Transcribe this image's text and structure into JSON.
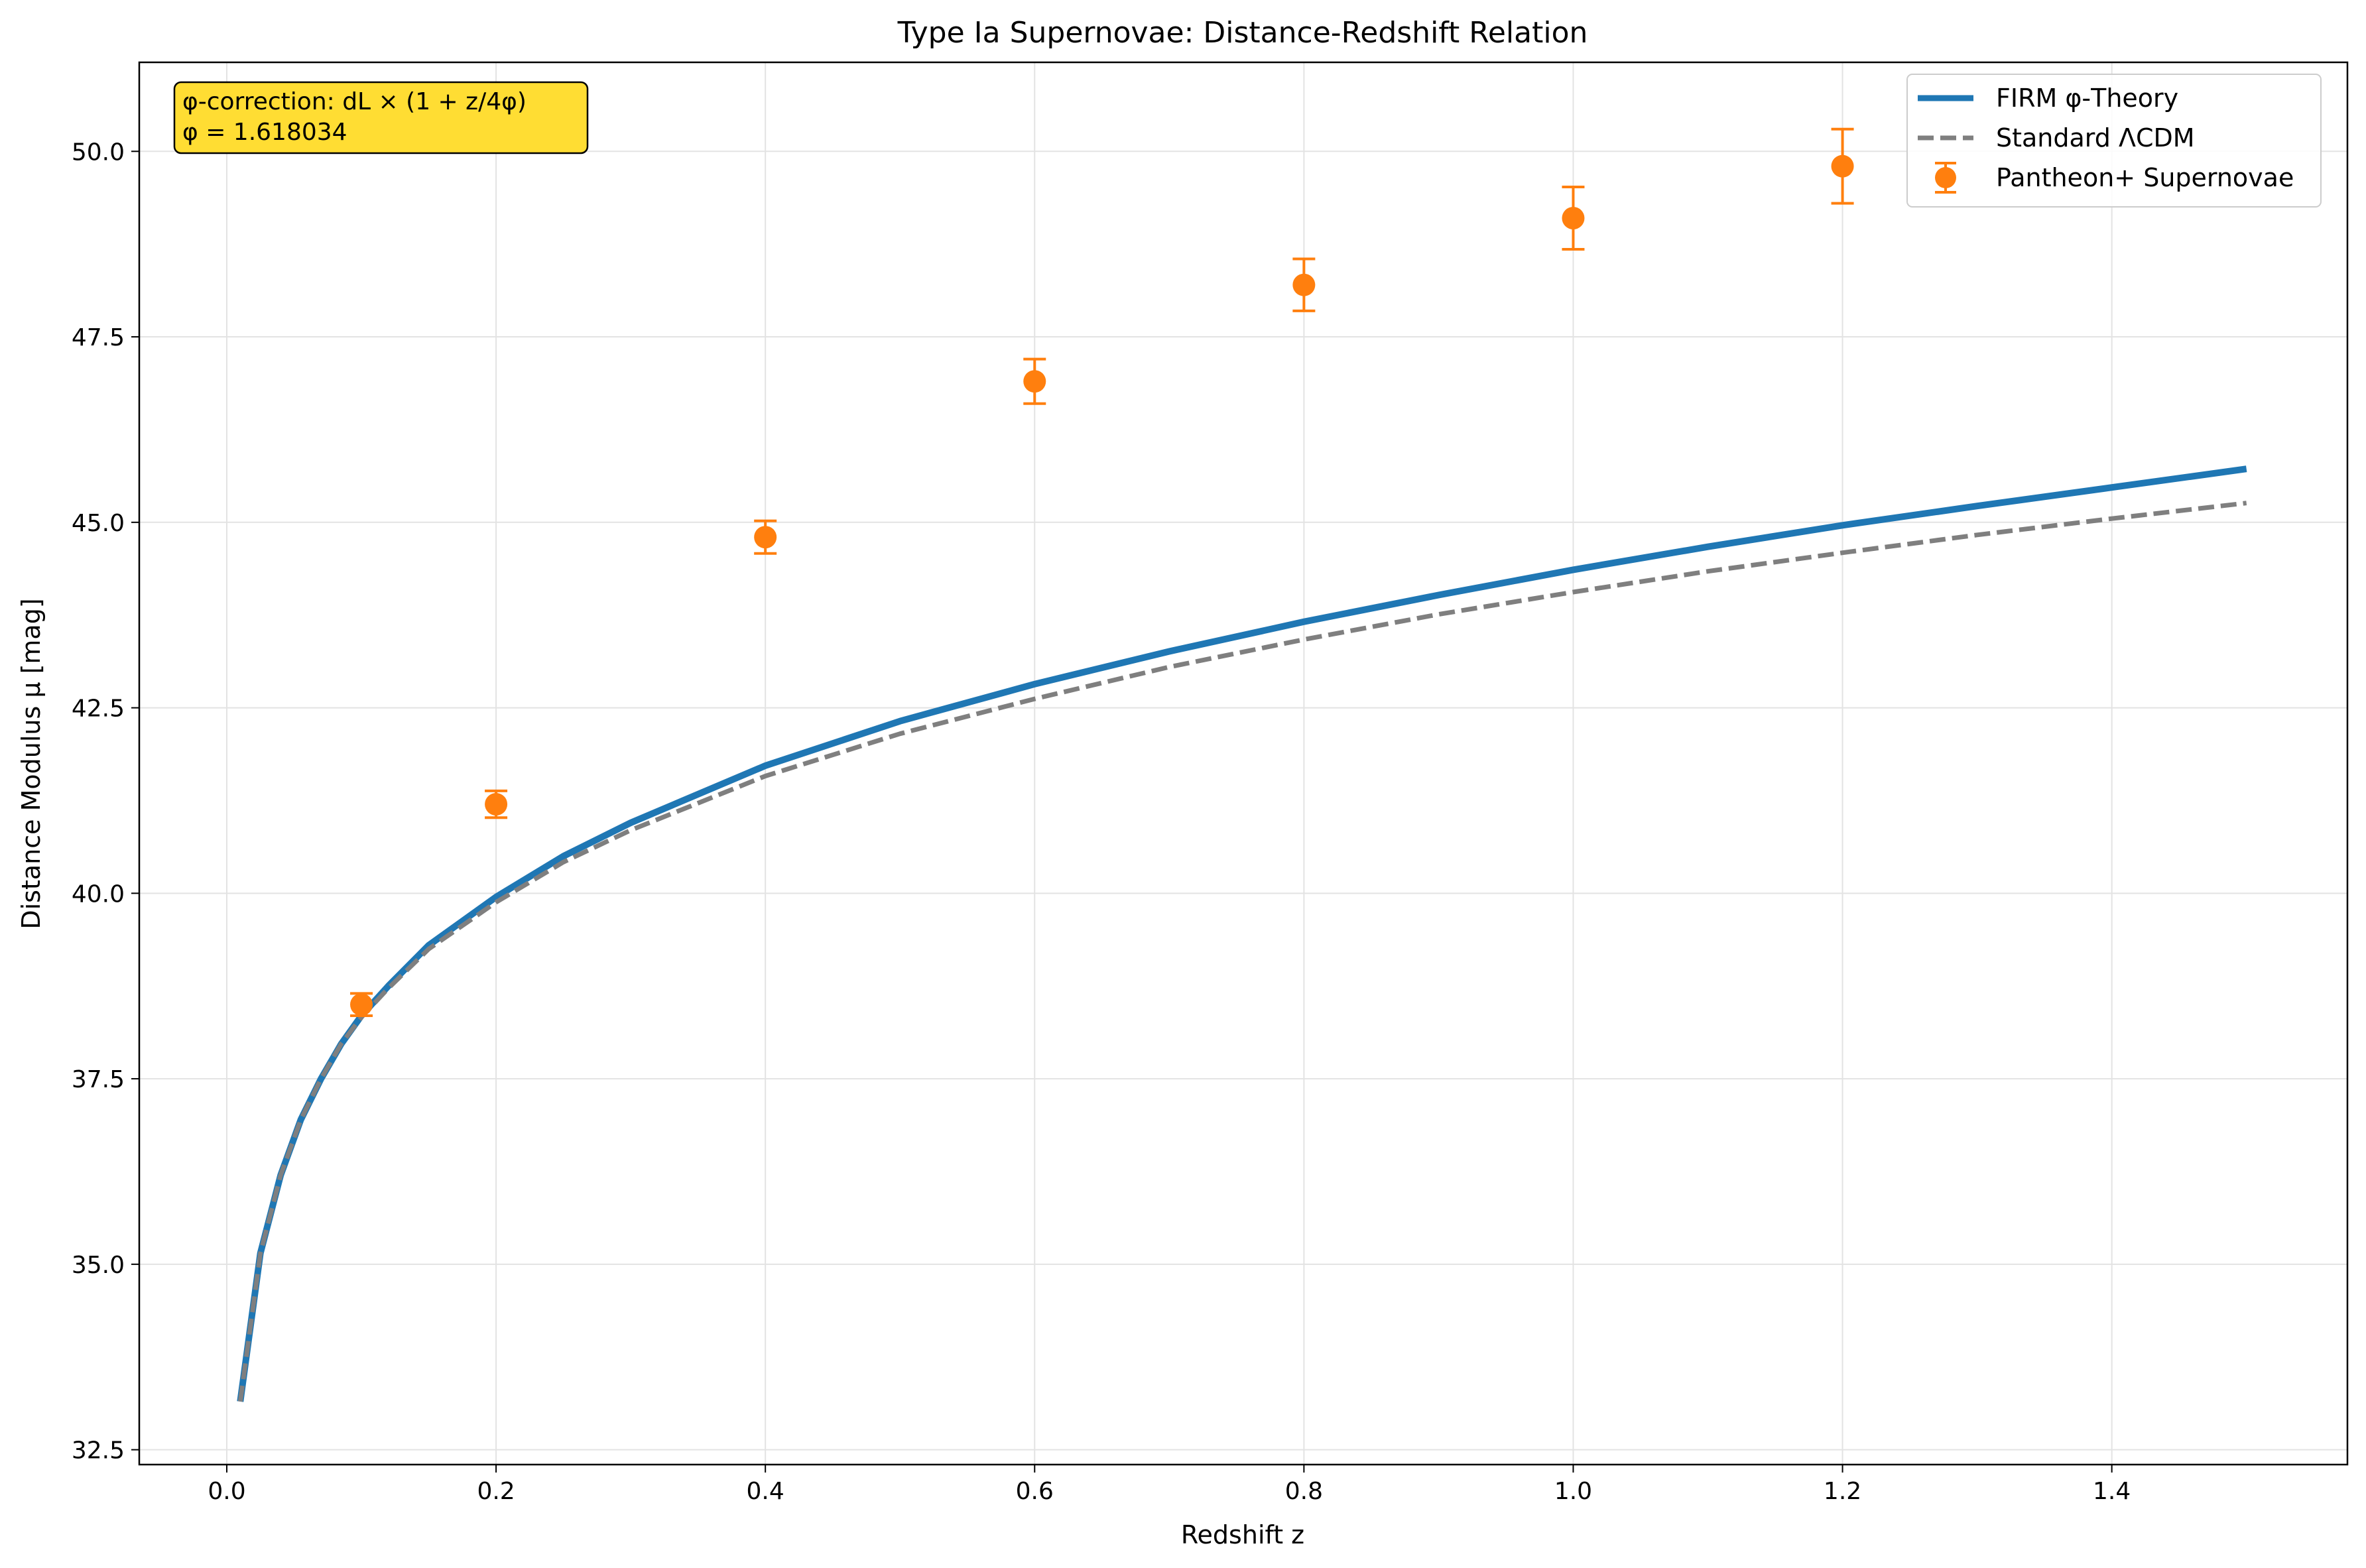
{
  "chart_data": {
    "type": "line",
    "title": "Type Ia Supernovae: Distance-Redshift Relation",
    "xlabel": "Redshift z",
    "ylabel": "Distance Modulus μ [mag]",
    "xlim": [
      -0.065,
      1.575
    ],
    "ylim": [
      32.3,
      51.2
    ],
    "xticks": [
      "0.0",
      "0.2",
      "0.4",
      "0.6",
      "0.8",
      "1.0",
      "1.2",
      "1.4"
    ],
    "yticks": [
      "32.5",
      "35.0",
      "37.5",
      "40.0",
      "42.5",
      "45.0",
      "47.5",
      "50.0"
    ],
    "grid": true,
    "legend_position": "top-right",
    "annotation": {
      "lines": [
        "φ-correction: dL × (1 + z/4φ)",
        "φ = 1.618034"
      ],
      "background": "#ffdd33"
    },
    "series": [
      {
        "name": "FIRM φ-Theory",
        "kind": "line",
        "color": "#1f77b4",
        "style": "solid",
        "x": [
          0.01,
          0.025,
          0.04,
          0.055,
          0.07,
          0.085,
          0.1,
          0.12,
          0.15,
          0.2,
          0.25,
          0.3,
          0.4,
          0.5,
          0.6,
          0.7,
          0.8,
          0.9,
          1.0,
          1.1,
          1.2,
          1.3,
          1.4,
          1.5
        ],
        "y": [
          33.15,
          35.15,
          36.2,
          36.95,
          37.5,
          37.97,
          38.35,
          38.75,
          39.3,
          39.95,
          40.5,
          40.95,
          41.72,
          42.32,
          42.82,
          43.26,
          43.66,
          44.02,
          44.36,
          44.67,
          44.96,
          45.22,
          45.47,
          45.72
        ]
      },
      {
        "name": "Standard ΛCDM",
        "kind": "line",
        "color": "#7f7f7f",
        "style": "dashed",
        "x": [
          0.01,
          0.025,
          0.04,
          0.055,
          0.07,
          0.085,
          0.1,
          0.12,
          0.15,
          0.2,
          0.25,
          0.3,
          0.4,
          0.5,
          0.6,
          0.7,
          0.8,
          0.9,
          1.0,
          1.1,
          1.2,
          1.3,
          1.4,
          1.5
        ],
        "y": [
          33.15,
          35.15,
          36.2,
          36.95,
          37.5,
          37.97,
          38.33,
          38.72,
          39.25,
          39.88,
          40.42,
          40.85,
          41.58,
          42.15,
          42.62,
          43.05,
          43.42,
          43.76,
          44.06,
          44.34,
          44.59,
          44.83,
          45.05,
          45.26
        ]
      },
      {
        "name": "Pantheon+ Supernovae",
        "kind": "errorbar",
        "color": "#ff7f0e",
        "x": [
          0.1,
          0.2,
          0.4,
          0.6,
          0.8,
          1.0,
          1.2
        ],
        "y": [
          38.5,
          41.2,
          44.8,
          46.9,
          48.2,
          49.1,
          49.8
        ],
        "yerr": [
          0.15,
          0.18,
          0.22,
          0.3,
          0.35,
          0.42,
          0.5
        ]
      }
    ]
  }
}
